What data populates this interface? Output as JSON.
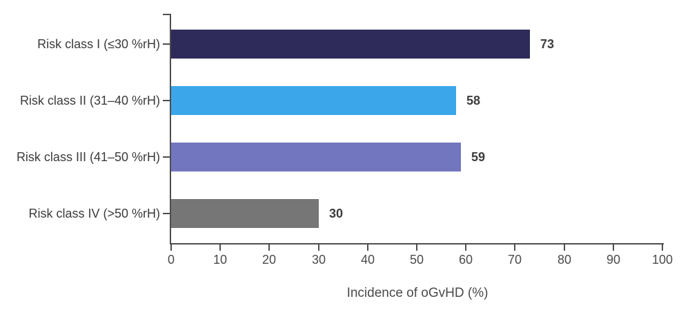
{
  "chart_data": {
    "type": "bar",
    "orientation": "horizontal",
    "title": "",
    "categories": [
      "Risk class I (≤30 %rH)",
      "Risk class II (31–40 %rH)",
      "Risk class III (41–50 %rH)",
      "Risk class IV (>50 %rH)"
    ],
    "values": [
      73,
      58,
      59,
      30
    ],
    "value_labels": [
      "73",
      "58",
      "59",
      "30"
    ],
    "bar_colors": [
      "#2E2A59",
      "#3BA7EA",
      "#7276BF",
      "#767676"
    ],
    "xlabel": "Incidence of oGvHD (%)",
    "ylabel": "",
    "xlim": [
      0,
      100
    ],
    "x_ticks": [
      0,
      10,
      20,
      30,
      40,
      50,
      60,
      70,
      80,
      90,
      100
    ],
    "grid": false,
    "legend": false
  },
  "colors": {
    "background": "#ffffff",
    "axis": "#4d4d4d",
    "tick_label": "#4a4a4a",
    "category_label": "#3b3b3b",
    "value_label": "#3d3d3d"
  }
}
